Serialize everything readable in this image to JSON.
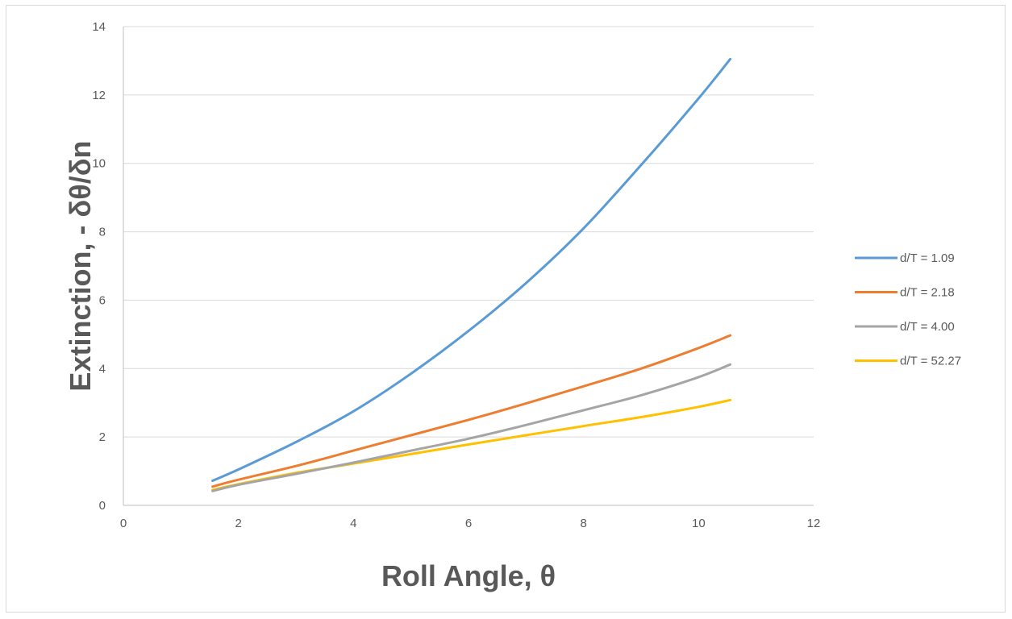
{
  "chart_data": {
    "type": "line",
    "title": "",
    "xlabel": "Roll Angle, θ",
    "ylabel": "Extinction, - δθ/δn",
    "xlim": [
      0,
      12
    ],
    "ylim": [
      0,
      14
    ],
    "xticks": [
      0,
      2,
      4,
      6,
      8,
      10,
      12
    ],
    "yticks": [
      0,
      2,
      4,
      6,
      8,
      10,
      12,
      14
    ],
    "grid": "horizontal",
    "legend_position": "right",
    "series": [
      {
        "name": "d/T = 1.09",
        "color": "#5B9BD5",
        "points": [
          [
            1.55,
            0.72
          ],
          [
            2,
            1.05
          ],
          [
            3,
            1.85
          ],
          [
            4,
            2.75
          ],
          [
            5,
            3.85
          ],
          [
            6,
            5.1
          ],
          [
            7,
            6.5
          ],
          [
            8,
            8.1
          ],
          [
            9,
            9.95
          ],
          [
            10,
            11.9
          ],
          [
            10.55,
            13.05
          ]
        ]
      },
      {
        "name": "d/T = 2.18",
        "color": "#ED7D31",
        "points": [
          [
            1.55,
            0.55
          ],
          [
            2,
            0.75
          ],
          [
            3,
            1.15
          ],
          [
            4,
            1.6
          ],
          [
            5,
            2.05
          ],
          [
            6,
            2.5
          ],
          [
            7,
            2.98
          ],
          [
            8,
            3.48
          ],
          [
            9,
            4.0
          ],
          [
            10,
            4.6
          ],
          [
            10.55,
            4.97
          ]
        ]
      },
      {
        "name": "d/T = 4.00",
        "color": "#A5A5A5",
        "points": [
          [
            1.55,
            0.42
          ],
          [
            2,
            0.6
          ],
          [
            3,
            0.92
          ],
          [
            4,
            1.25
          ],
          [
            5,
            1.6
          ],
          [
            6,
            1.95
          ],
          [
            7,
            2.35
          ],
          [
            8,
            2.78
          ],
          [
            9,
            3.22
          ],
          [
            10,
            3.75
          ],
          [
            10.55,
            4.12
          ]
        ]
      },
      {
        "name": "d/T = 52.27",
        "color": "#FFC000",
        "points": [
          [
            1.55,
            0.45
          ],
          [
            2,
            0.62
          ],
          [
            3,
            0.95
          ],
          [
            4,
            1.22
          ],
          [
            5,
            1.5
          ],
          [
            6,
            1.78
          ],
          [
            7,
            2.05
          ],
          [
            8,
            2.32
          ],
          [
            9,
            2.58
          ],
          [
            10,
            2.88
          ],
          [
            10.55,
            3.08
          ]
        ]
      }
    ]
  }
}
